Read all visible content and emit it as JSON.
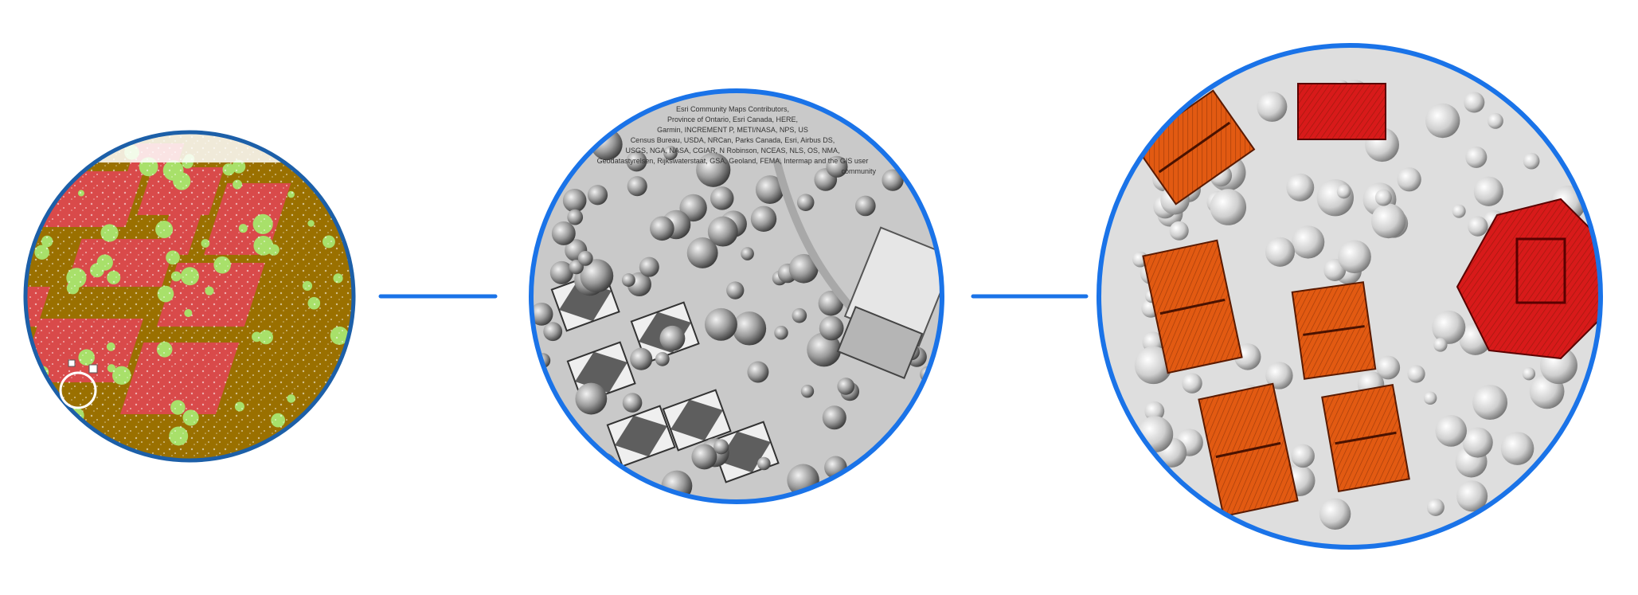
{
  "colors": {
    "ring": "#1a73e8",
    "ring_dark": "#1c5fa8",
    "connector": "#1a73e8",
    "ground_brown": "#9a7000",
    "building_red": "#d94a4a",
    "vegetation_green": "#a8e06a",
    "hillshade_bg": "#c9c9c9",
    "hillshade_dark": "#3a3a3a",
    "roof_orange": "#e25a12",
    "roof_red": "#d81a1a",
    "white": "#ffffff"
  },
  "stages": [
    {
      "name": "classified-point-cloud",
      "icon": "point-cloud-icon"
    },
    {
      "name": "hillshade-surface",
      "icon": "hillshade-icon"
    },
    {
      "name": "extracted-building-footprints",
      "icon": "building-footprint-icon"
    }
  ],
  "attribution": {
    "lines": [
      "Esri Community Maps Contributors,",
      "Province of Ontario, Esri Canada, HERE,",
      "Garmin, INCREMENT P, METI/NASA, NPS, US",
      "Census Bureau, USDA, NRCan, Parks Canada, Esri, Airbus DS,",
      "USGS, NGA, NASA, CGIAR, N Robinson, NCEAS, NLS, OS, NMA,",
      "Geodatastyrelsen, Rijkswaterstaat, GSA, Geoland, FEMA, Intermap and the GIS user",
      "community"
    ]
  }
}
